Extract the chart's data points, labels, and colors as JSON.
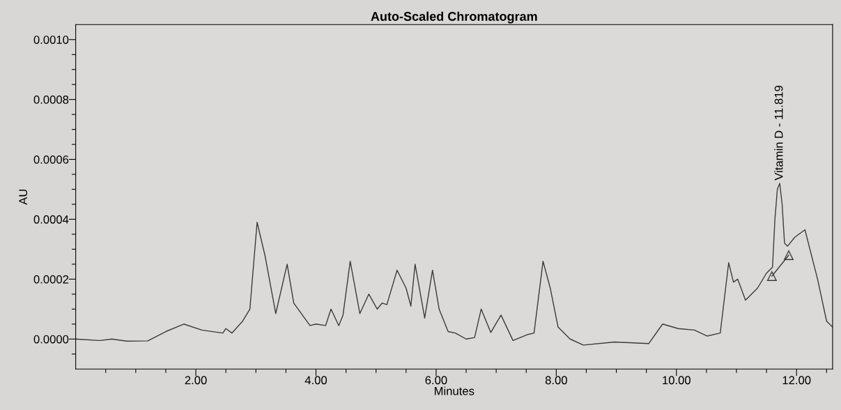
{
  "chart_data": {
    "type": "line",
    "title": "Auto-Scaled Chromatogram",
    "xlabel": "Minutes",
    "ylabel": "AU",
    "xlim": [
      0,
      12.6
    ],
    "ylim": [
      -0.0001,
      0.00105
    ],
    "xticks": [
      {
        "value": 0.5,
        "label": null
      },
      {
        "value": 1.0,
        "label": null
      },
      {
        "value": 1.5,
        "label": null
      },
      {
        "value": 2,
        "label": "2.00"
      },
      {
        "value": 2.5,
        "label": null
      },
      {
        "value": 3.0,
        "label": null
      },
      {
        "value": 3.5,
        "label": null
      },
      {
        "value": 4,
        "label": "4.00"
      },
      {
        "value": 4.5,
        "label": null
      },
      {
        "value": 5.0,
        "label": null
      },
      {
        "value": 5.5,
        "label": null
      },
      {
        "value": 6,
        "label": "6.00"
      },
      {
        "value": 6.5,
        "label": null
      },
      {
        "value": 7.0,
        "label": null
      },
      {
        "value": 7.5,
        "label": null
      },
      {
        "value": 8,
        "label": "8.00"
      },
      {
        "value": 8.5,
        "label": null
      },
      {
        "value": 9.0,
        "label": null
      },
      {
        "value": 9.5,
        "label": null
      },
      {
        "value": 10,
        "label": "10.00"
      },
      {
        "value": 10.5,
        "label": null
      },
      {
        "value": 11.0,
        "label": null
      },
      {
        "value": 11.5,
        "label": null
      },
      {
        "value": 12,
        "label": "12.00"
      },
      {
        "value": 12.5,
        "label": null
      }
    ],
    "yticks": [
      {
        "value": -5e-05,
        "label": null
      },
      {
        "value": 0,
        "label": "0.0000"
      },
      {
        "value": 5e-05,
        "label": null
      },
      {
        "value": 0.0001,
        "label": null
      },
      {
        "value": 0.00015,
        "label": null
      },
      {
        "value": 0.0002,
        "label": "0.0002"
      },
      {
        "value": 0.00025,
        "label": null
      },
      {
        "value": 0.0003,
        "label": null
      },
      {
        "value": 0.00035,
        "label": null
      },
      {
        "value": 0.0004,
        "label": "0.0004"
      },
      {
        "value": 0.00045,
        "label": null
      },
      {
        "value": 0.0005,
        "label": null
      },
      {
        "value": 0.00055,
        "label": null
      },
      {
        "value": 0.0006,
        "label": "0.0006"
      },
      {
        "value": 0.00065,
        "label": null
      },
      {
        "value": 0.0007,
        "label": null
      },
      {
        "value": 0.00075,
        "label": null
      },
      {
        "value": 0.0008,
        "label": "0.0008"
      },
      {
        "value": 0.00085,
        "label": null
      },
      {
        "value": 0.0009,
        "label": null
      },
      {
        "value": 0.00095,
        "label": null
      },
      {
        "value": 0.001,
        "label": "0.0010"
      }
    ],
    "grid": false,
    "legend": false,
    "annotations": [
      {
        "text": "Vitamin D - 11.819",
        "x": 11.72,
        "y": 0.00052
      }
    ],
    "series": [
      {
        "color": "#3a3a3a",
        "marker": "none",
        "x": [
          0.0,
          0.4,
          0.6,
          0.85,
          1.2,
          1.5,
          1.8,
          2.1,
          2.45,
          2.5,
          2.6,
          2.78,
          2.9,
          3.02,
          3.15,
          3.33,
          3.52,
          3.63,
          3.9,
          4.0,
          4.16,
          4.25,
          4.38,
          4.45,
          4.57,
          4.73,
          4.88,
          5.02,
          5.1,
          5.18,
          5.35,
          5.5,
          5.58,
          5.65,
          5.81,
          5.94,
          6.05,
          6.2,
          6.32,
          6.5,
          6.64,
          6.75,
          6.91,
          7.08,
          7.28,
          7.52,
          7.63,
          7.78,
          7.9,
          8.03,
          8.23,
          8.45,
          8.97,
          9.54,
          9.77,
          10.03,
          10.3,
          10.51,
          10.73,
          10.87,
          10.95,
          11.02,
          11.15,
          11.35,
          11.5,
          11.6,
          11.64,
          11.68,
          11.72,
          11.76,
          11.8,
          11.85,
          11.97,
          12.14,
          12.35,
          12.5,
          12.6
        ],
        "values": [
          0.0,
          -5e-06,
          0.0,
          -7e-06,
          -6e-06,
          2.5e-05,
          5e-05,
          3e-05,
          2e-05,
          3.5e-05,
          2e-05,
          6e-05,
          0.0001,
          0.00039,
          0.00028,
          8.5e-05,
          0.00025,
          0.00012,
          4.5e-05,
          5e-05,
          4.5e-05,
          0.0001,
          4.5e-05,
          8e-05,
          0.00026,
          8.5e-05,
          0.00015,
          0.0001,
          0.00012,
          0.000115,
          0.00023,
          0.00017,
          0.00011,
          0.00025,
          7e-05,
          0.00023,
          0.0001,
          2.5e-05,
          2e-05,
          0.0,
          5e-06,
          0.0001,
          2.2e-05,
          8e-05,
          -5e-06,
          1.5e-05,
          2e-05,
          0.00026,
          0.00017,
          4e-05,
          0.0,
          -2e-05,
          -1e-05,
          -1.5e-05,
          5e-05,
          3.5e-05,
          3e-05,
          1e-05,
          2e-05,
          0.000255,
          0.00019,
          0.0002,
          0.00013,
          0.00017,
          0.00022,
          0.00024,
          0.0004,
          0.0005,
          0.00052,
          0.00045,
          0.00032,
          0.00031,
          0.00034,
          0.000365,
          0.0002,
          6e-05,
          4e-05
        ]
      },
      {
        "color": "#3a3a3a",
        "marker": "triangle",
        "x": [
          11.59,
          11.87
        ],
        "values": [
          0.00021,
          0.00028
        ]
      }
    ]
  }
}
